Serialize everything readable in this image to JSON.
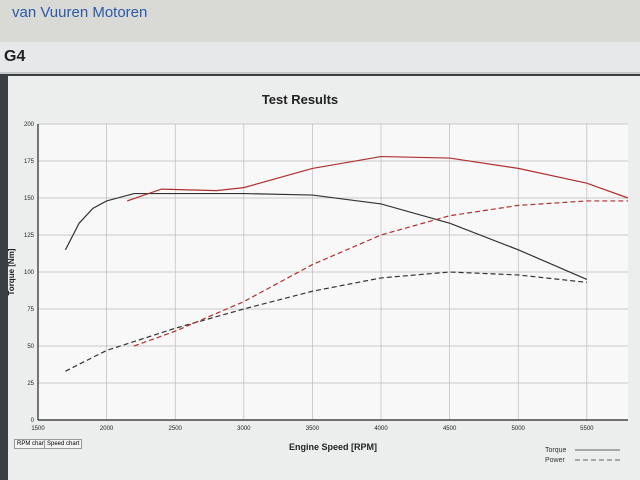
{
  "header": {
    "brand": "van Vuuren Motoren",
    "logo": "G4"
  },
  "tabs": [
    {
      "label": "RPM chart"
    },
    {
      "label": "Speed chart"
    }
  ],
  "chart_data": {
    "type": "line",
    "title": "Test Results",
    "xlabel": "Engine Speed [RPM]",
    "ylabel": "Torque [Nm]",
    "xlim": [
      1500,
      5800
    ],
    "ylim": [
      0,
      200
    ],
    "xticks": [
      1500,
      2000,
      2500,
      3000,
      3500,
      4000,
      4500,
      5000,
      5500
    ],
    "yticks": [
      0,
      25,
      50,
      75,
      100,
      125,
      150,
      175,
      200
    ],
    "grid": true,
    "legend": {
      "position": "bottom-right",
      "entries": [
        "Torque",
        "Power"
      ]
    },
    "series": [
      {
        "kind": "torque",
        "color": "#333333",
        "dash": false,
        "x": [
          1700,
          1800,
          1900,
          2000,
          2200,
          2500,
          3000,
          3500,
          4000,
          4500,
          5000,
          5500
        ],
        "y": [
          115,
          133,
          143,
          148,
          153,
          153,
          153,
          152,
          146,
          133,
          115,
          95
        ]
      },
      {
        "kind": "torque",
        "color": "#b03030",
        "dash": false,
        "x": [
          2150,
          2400,
          2800,
          3000,
          3500,
          4000,
          4500,
          5000,
          5500,
          5800
        ],
        "y": [
          148,
          156,
          155,
          157,
          170,
          178,
          177,
          170,
          160,
          150
        ]
      },
      {
        "kind": "power",
        "color": "#333333",
        "dash": true,
        "x": [
          1700,
          2000,
          2500,
          3000,
          3500,
          4000,
          4500,
          5000,
          5500
        ],
        "y": [
          33,
          47,
          62,
          75,
          87,
          96,
          100,
          98,
          93
        ]
      },
      {
        "kind": "power",
        "color": "#b03030",
        "dash": true,
        "x": [
          2200,
          2500,
          3000,
          3500,
          4000,
          4500,
          5000,
          5500,
          5800
        ],
        "y": [
          50,
          60,
          80,
          105,
          125,
          138,
          145,
          148,
          148
        ]
      }
    ]
  }
}
